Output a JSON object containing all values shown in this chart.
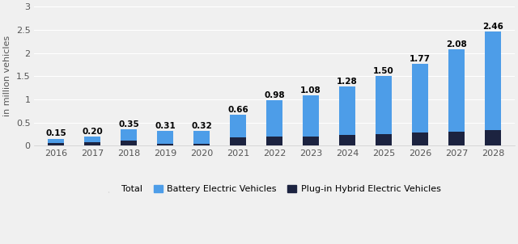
{
  "years": [
    2016,
    2017,
    2018,
    2019,
    2020,
    2021,
    2022,
    2023,
    2024,
    2025,
    2026,
    2027,
    2028
  ],
  "totals": [
    0.15,
    0.2,
    0.35,
    0.31,
    0.32,
    0.66,
    0.98,
    1.08,
    1.28,
    1.5,
    1.77,
    2.08,
    2.46
  ],
  "phev": [
    0.06,
    0.08,
    0.1,
    0.04,
    0.04,
    0.17,
    0.2,
    0.2,
    0.23,
    0.25,
    0.28,
    0.3,
    0.34
  ],
  "bev_color": "#4d9de8",
  "phev_color": "#1c2340",
  "total_legend_color": "#cccccc",
  "bg_color": "#f0f0f0",
  "grid_color": "#ffffff",
  "ylabel": "in million vehicles",
  "ylim": [
    0,
    3.0
  ],
  "yticks": [
    0,
    0.5,
    1.0,
    1.5,
    2.0,
    2.5,
    3.0
  ],
  "ytick_labels": [
    "0",
    "0.5",
    "1",
    "1.5",
    "2",
    "2.5",
    "3"
  ],
  "label_fontsize": 7.5,
  "legend_labels": [
    "Total",
    "Battery Electric Vehicles",
    "Plug-in Hybrid Electric Vehicles"
  ]
}
